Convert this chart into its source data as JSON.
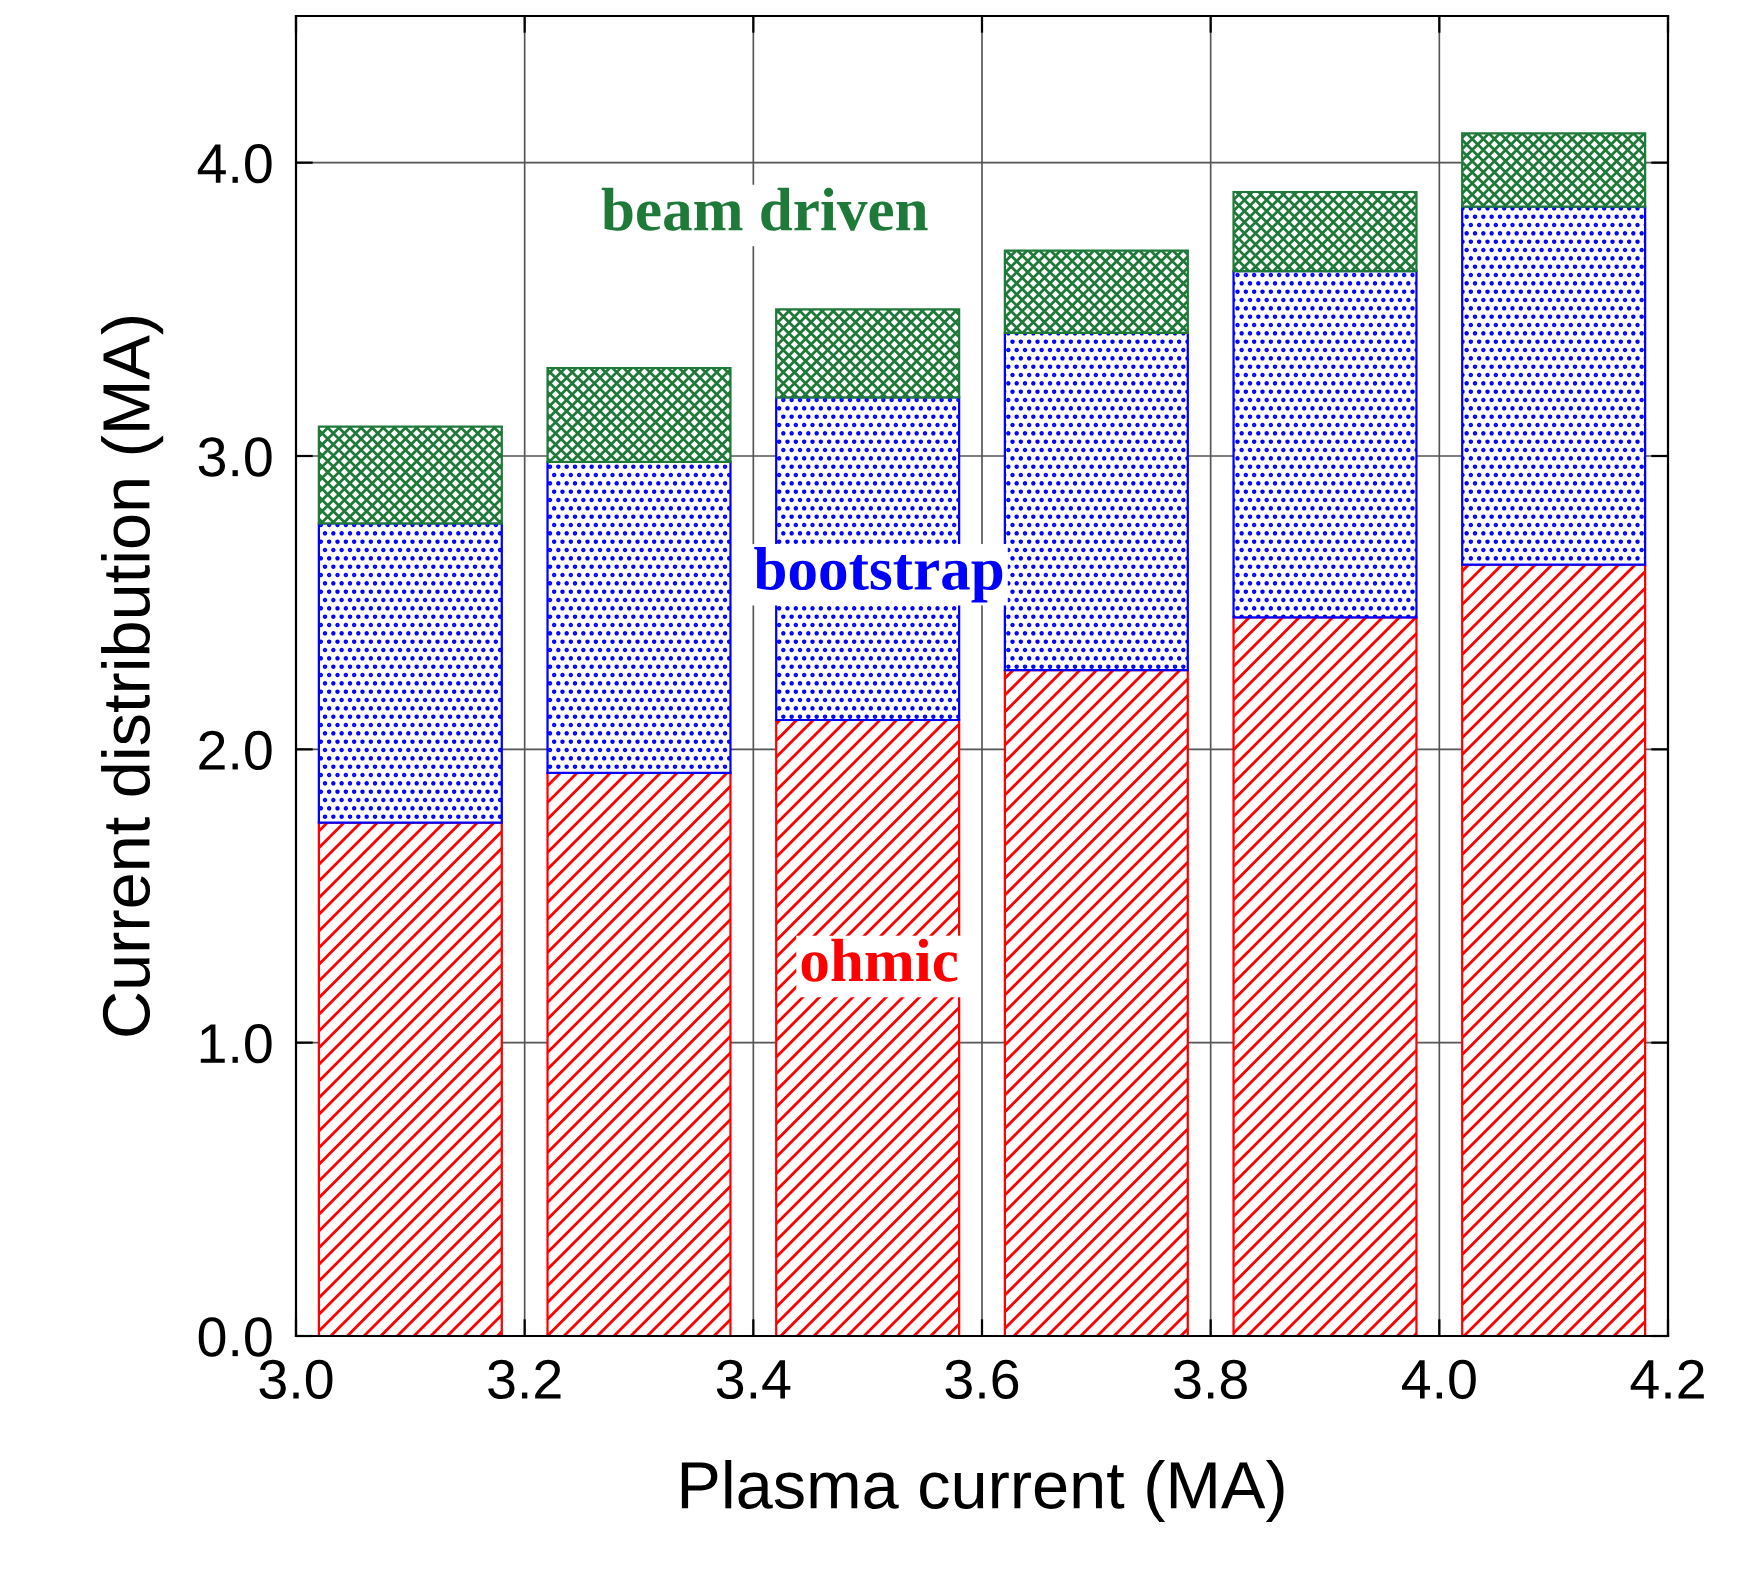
{
  "chart_data": {
    "type": "bar",
    "stacked": true,
    "xlabel": "Plasma current (MA)",
    "ylabel": "Current distribution (MA)",
    "x": [
      3.1,
      3.3,
      3.5,
      3.7,
      3.9,
      4.1
    ],
    "series": [
      {
        "name": "ohmic",
        "color": "#ff0000",
        "values": [
          1.75,
          1.92,
          2.1,
          2.27,
          2.45,
          2.63
        ]
      },
      {
        "name": "bootstrap",
        "color": "#0000ff",
        "values": [
          1.02,
          1.06,
          1.1,
          1.15,
          1.18,
          1.22
        ]
      },
      {
        "name": "beam driven",
        "color": "#1f7a3a",
        "values": [
          0.33,
          0.32,
          0.3,
          0.28,
          0.27,
          0.25
        ]
      }
    ],
    "xlim": [
      3.0,
      4.2
    ],
    "xticks": [
      {
        "value": 3.0,
        "label": "3.0"
      },
      3.2,
      3.4,
      3.6,
      3.8,
      {
        "value": 4.0,
        "label": "4.0"
      },
      4.2
    ],
    "ylim": [
      0,
      4.5
    ],
    "yticks": [
      {
        "value": 0,
        "label": "0.0"
      },
      {
        "value": 1,
        "label": "1.0"
      },
      {
        "value": 2,
        "label": "2.0"
      },
      {
        "value": 3,
        "label": "3.0"
      },
      {
        "value": 4,
        "label": "4.0"
      }
    ],
    "grid": true,
    "legend": false
  }
}
